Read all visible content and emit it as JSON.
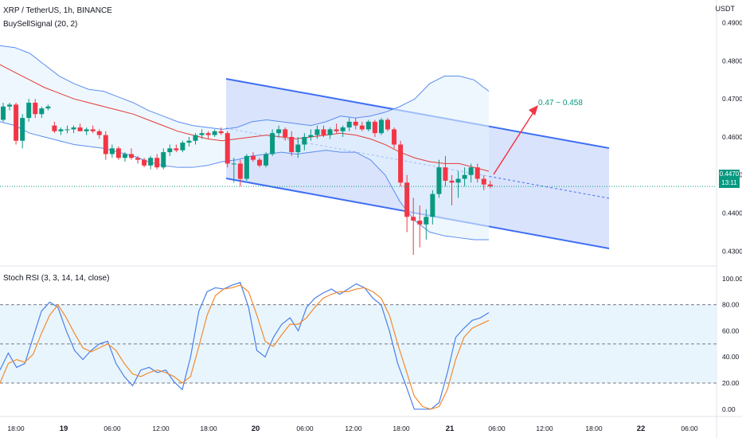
{
  "header": {
    "symbol_title": "XRP / TetherUS, 1h, BINANCE",
    "indicator_label": "BuySellSignal (20, 2)",
    "currency": "USDT"
  },
  "price_tag": {
    "price": "0.4470",
    "countdown": "13:11"
  },
  "target_label": "0.47 ~ 0.458",
  "rsi_panel": {
    "title": "Stoch RSI (3, 3, 14, 14, close)"
  },
  "colors": {
    "up": "#089981",
    "down": "#f23645",
    "bb": "#5b8def",
    "bb_fill": "#e3f2fd",
    "channel": "#3d6ef5",
    "channel_fill": "#cdd9fb",
    "basis": "#e53935",
    "k_line": "#4a7fe8",
    "d_line": "#f28a2e",
    "arrow": "#f23645"
  },
  "chart_data": [
    {
      "type": "candlestick",
      "title": "XRP / TetherUS, 1h, BINANCE",
      "x_labels": [
        "18:00",
        "19",
        "06:00",
        "12:00",
        "18:00",
        "20",
        "06:00",
        "12:00",
        "18:00",
        "21",
        "06:00",
        "12:00",
        "18:00",
        "22",
        "06:00"
      ],
      "y_ticks": [
        0.43,
        0.44,
        0.45,
        0.46,
        0.47,
        0.48,
        0.49
      ],
      "ylim": [
        0.4265,
        0.496
      ],
      "candles": [
        [
          0.4645,
          0.469,
          0.464,
          0.468
        ],
        [
          0.468,
          0.469,
          0.467,
          0.4685
        ],
        [
          0.4685,
          0.469,
          0.458,
          0.459
        ],
        [
          0.459,
          0.466,
          0.457,
          0.465
        ],
        [
          0.465,
          0.47,
          0.464,
          0.469
        ],
        [
          0.469,
          0.47,
          0.465,
          0.466
        ],
        [
          0.466,
          0.468,
          0.465,
          0.4675
        ],
        [
          0.4675,
          0.4685,
          0.467,
          0.468
        ],
        [
          0.463,
          0.464,
          0.461,
          0.4615
        ],
        [
          0.4615,
          0.4625,
          0.4605,
          0.462
        ],
        [
          0.462,
          0.463,
          0.461,
          0.462
        ],
        [
          0.462,
          0.463,
          0.461,
          0.4625
        ],
        [
          0.4625,
          0.4635,
          0.4615,
          0.4615
        ],
        [
          0.4615,
          0.4625,
          0.4605,
          0.462
        ],
        [
          0.462,
          0.463,
          0.461,
          0.4615
        ],
        [
          0.4615,
          0.462,
          0.4595,
          0.4605
        ],
        [
          0.4605,
          0.4615,
          0.454,
          0.4555
        ],
        [
          0.4555,
          0.458,
          0.4545,
          0.457
        ],
        [
          0.457,
          0.4575,
          0.454,
          0.4545
        ],
        [
          0.4545,
          0.456,
          0.4535,
          0.4555
        ],
        [
          0.4555,
          0.457,
          0.454,
          0.4545
        ],
        [
          0.4545,
          0.455,
          0.453,
          0.454
        ],
        [
          0.454,
          0.4545,
          0.452,
          0.4525
        ],
        [
          0.4525,
          0.455,
          0.4515,
          0.4545
        ],
        [
          0.4545,
          0.4555,
          0.4515,
          0.452
        ],
        [
          0.452,
          0.457,
          0.4515,
          0.456
        ],
        [
          0.456,
          0.458,
          0.455,
          0.457
        ],
        [
          0.457,
          0.458,
          0.456,
          0.4565
        ],
        [
          0.4565,
          0.459,
          0.456,
          0.4585
        ],
        [
          0.4585,
          0.46,
          0.4575,
          0.459
        ],
        [
          0.459,
          0.461,
          0.458,
          0.4605
        ],
        [
          0.4605,
          0.462,
          0.4595,
          0.461
        ],
        [
          0.461,
          0.4615,
          0.4595,
          0.4605
        ],
        [
          0.4605,
          0.462,
          0.46,
          0.4615
        ],
        [
          0.4615,
          0.4625,
          0.4605,
          0.461
        ],
        [
          0.461,
          0.4615,
          0.452,
          0.453
        ],
        [
          0.453,
          0.4545,
          0.448,
          0.453
        ],
        [
          0.453,
          0.454,
          0.447,
          0.449
        ],
        [
          0.449,
          0.4555,
          0.4485,
          0.455
        ],
        [
          0.455,
          0.456,
          0.4535,
          0.454
        ],
        [
          0.454,
          0.4545,
          0.452,
          0.4525
        ],
        [
          0.4525,
          0.456,
          0.452,
          0.4555
        ],
        [
          0.4555,
          0.462,
          0.455,
          0.461
        ],
        [
          0.461,
          0.463,
          0.46,
          0.462
        ],
        [
          0.462,
          0.4625,
          0.459,
          0.46
        ],
        [
          0.46,
          0.4615,
          0.455,
          0.456
        ],
        [
          0.456,
          0.46,
          0.4545,
          0.458
        ],
        [
          0.458,
          0.461,
          0.4565,
          0.46
        ],
        [
          0.46,
          0.462,
          0.459,
          0.4605
        ],
        [
          0.4605,
          0.463,
          0.4595,
          0.462
        ],
        [
          0.462,
          0.463,
          0.46,
          0.4605
        ],
        [
          0.4605,
          0.4625,
          0.4595,
          0.462
        ],
        [
          0.462,
          0.4635,
          0.461,
          0.4615
        ],
        [
          0.4615,
          0.463,
          0.46,
          0.4625
        ],
        [
          0.4625,
          0.465,
          0.4615,
          0.464
        ],
        [
          0.464,
          0.465,
          0.462,
          0.463
        ],
        [
          0.463,
          0.464,
          0.4615,
          0.462
        ],
        [
          0.462,
          0.4645,
          0.4615,
          0.464
        ],
        [
          0.464,
          0.4645,
          0.46,
          0.461
        ],
        [
          0.461,
          0.465,
          0.4605,
          0.4645
        ],
        [
          0.4645,
          0.465,
          0.4615,
          0.462
        ],
        [
          0.462,
          0.4625,
          0.457,
          0.458
        ],
        [
          0.458,
          0.459,
          0.447,
          0.448
        ],
        [
          0.448,
          0.45,
          0.435,
          0.439
        ],
        [
          0.439,
          0.444,
          0.429,
          0.438
        ],
        [
          0.438,
          0.442,
          0.431,
          0.437
        ],
        [
          0.437,
          0.441,
          0.433,
          0.439
        ],
        [
          0.439,
          0.446,
          0.437,
          0.445
        ],
        [
          0.445,
          0.454,
          0.444,
          0.452
        ],
        [
          0.452,
          0.455,
          0.447,
          0.4485
        ],
        [
          0.4485,
          0.45,
          0.442,
          0.448
        ],
        [
          0.448,
          0.451,
          0.444,
          0.449
        ],
        [
          0.449,
          0.452,
          0.447,
          0.45
        ],
        [
          0.45,
          0.453,
          0.448,
          0.452
        ],
        [
          0.452,
          0.453,
          0.448,
          0.449
        ],
        [
          0.449,
          0.45,
          0.446,
          0.4475
        ],
        [
          0.4475,
          0.4485,
          0.4465,
          0.447
        ]
      ],
      "bollinger": {
        "upper": [
          0.484,
          0.4835,
          0.482,
          0.479,
          0.476,
          0.474,
          0.4725,
          0.472,
          0.4705,
          0.469,
          0.467,
          0.4655,
          0.464,
          0.463,
          0.4625,
          0.462,
          0.4625,
          0.464,
          0.4645,
          0.464,
          0.4635,
          0.463,
          0.464,
          0.4655,
          0.465,
          0.4655,
          0.4665,
          0.468,
          0.47,
          0.474,
          0.476,
          0.476,
          0.475,
          0.472
        ],
        "basis": [
          0.479,
          0.477,
          0.475,
          0.473,
          0.4715,
          0.47,
          0.469,
          0.468,
          0.467,
          0.466,
          0.4645,
          0.463,
          0.4615,
          0.4605,
          0.4595,
          0.459,
          0.4595,
          0.46,
          0.4605,
          0.46,
          0.4595,
          0.46,
          0.4605,
          0.461,
          0.4605,
          0.4595,
          0.458,
          0.456,
          0.4545,
          0.4535,
          0.453,
          0.453,
          0.452,
          0.451
        ],
        "lower": [
          0.464,
          0.463,
          0.461,
          0.46,
          0.459,
          0.458,
          0.4575,
          0.457,
          0.456,
          0.455,
          0.4535,
          0.4525,
          0.452,
          0.452,
          0.4525,
          0.4535,
          0.454,
          0.455,
          0.4555,
          0.456,
          0.4555,
          0.456,
          0.4565,
          0.456,
          0.456,
          0.454,
          0.45,
          0.443,
          0.438,
          0.435,
          0.434,
          0.4335,
          0.433,
          0.433
        ]
      }
    },
    {
      "type": "line",
      "title": "Stoch RSI (3, 3, 14, 14, close)",
      "y_ticks": [
        0,
        20,
        40,
        60,
        80,
        100
      ],
      "ylim": [
        -5,
        106
      ],
      "levels": [
        80,
        50,
        20
      ],
      "series": [
        {
          "values": [
            30,
            43,
            32,
            35,
            55,
            75,
            82,
            78,
            60,
            45,
            38,
            45,
            50,
            52,
            35,
            25,
            18,
            30,
            32,
            28,
            30,
            21,
            15,
            40,
            75,
            90,
            93,
            92,
            95,
            97,
            78,
            45,
            40,
            55,
            65,
            70,
            60,
            78,
            85,
            89,
            92,
            88,
            92,
            96,
            93,
            85,
            80,
            60,
            35,
            18,
            0,
            0,
            0,
            5,
            28,
            55,
            62,
            68,
            70,
            74
          ]
        },
        {
          "values": [
            20,
            35,
            38,
            36,
            42,
            58,
            72,
            80,
            70,
            58,
            47,
            44,
            47,
            50,
            45,
            35,
            27,
            25,
            28,
            30,
            28,
            25,
            20,
            25,
            48,
            72,
            87,
            92,
            93,
            95,
            90,
            72,
            52,
            48,
            57,
            65,
            65,
            70,
            78,
            85,
            88,
            90,
            90,
            92,
            93,
            90,
            85,
            72,
            50,
            30,
            10,
            2,
            0,
            2,
            15,
            38,
            55,
            62,
            65,
            68
          ]
        }
      ]
    }
  ]
}
